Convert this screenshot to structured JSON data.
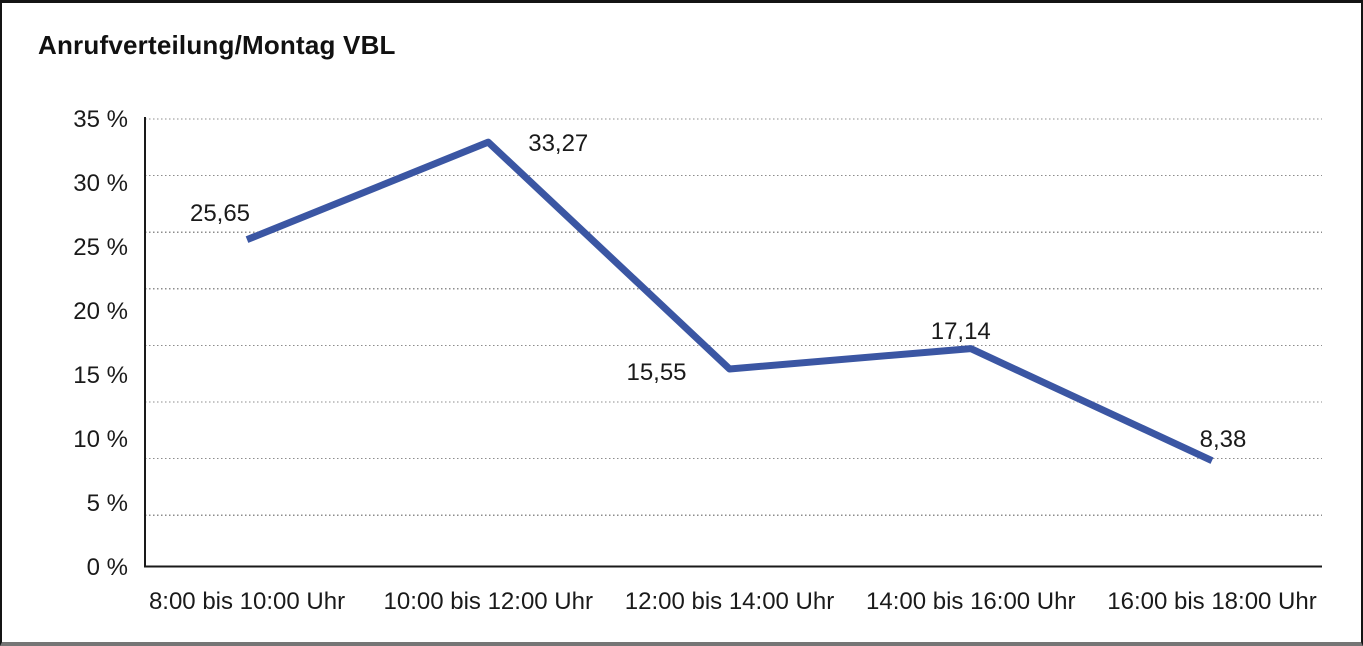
{
  "chart_data": {
    "type": "line",
    "title": "Anrufverteilung/Montag VBL",
    "categories": [
      "8:00 bis 10:00 Uhr",
      "10:00 bis 12:00 Uhr",
      "12:00 bis 14:00 Uhr",
      "14:00 bis 16:00 Uhr",
      "16:00 bis 18:00 Uhr"
    ],
    "values": [
      25.65,
      33.27,
      15.55,
      17.14,
      8.38
    ],
    "data_labels": [
      "25,65",
      "33,27",
      "15,55",
      "17,14",
      "8,38"
    ],
    "y_ticks": [
      "35 %",
      "30 %",
      "25 %",
      "20 %",
      "15 %",
      "10 %",
      "5 %",
      "0 %"
    ],
    "y_tick_values": [
      35,
      30,
      25,
      20,
      15,
      10,
      5,
      0
    ],
    "ylim": [
      0,
      35
    ],
    "xlabel": "",
    "ylabel": "",
    "legend": "none",
    "grid": "horizontal-dotted",
    "line_color": "#3B56A3",
    "axis_color": "#1a1a1a",
    "grid_color": "#8c8c8c",
    "text_color": "#1a1a1a",
    "background_color": "#ffffff"
  }
}
